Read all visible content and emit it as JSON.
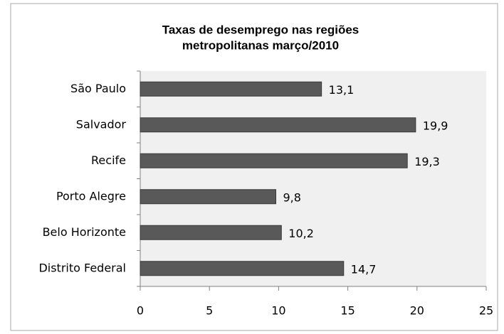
{
  "chart_data": {
    "type": "barh",
    "title": [
      "Taxas de desemprego nas regiões",
      "metropolitanas março/2010"
    ],
    "categories": [
      "São Paulo",
      "Salvador",
      "Recife",
      "Porto Alegre",
      "Belo Horizonte",
      "Distrito Federal"
    ],
    "values": [
      13.1,
      19.9,
      19.3,
      9.8,
      10.2,
      14.7
    ],
    "value_labels": [
      "13,1",
      "19,9",
      "19,3",
      "9,8",
      "10,2",
      "14,7"
    ],
    "color": "#595959",
    "xlim": [
      0,
      25
    ],
    "xticks": [
      0,
      5,
      10,
      15,
      20,
      25
    ],
    "grid": false
  }
}
